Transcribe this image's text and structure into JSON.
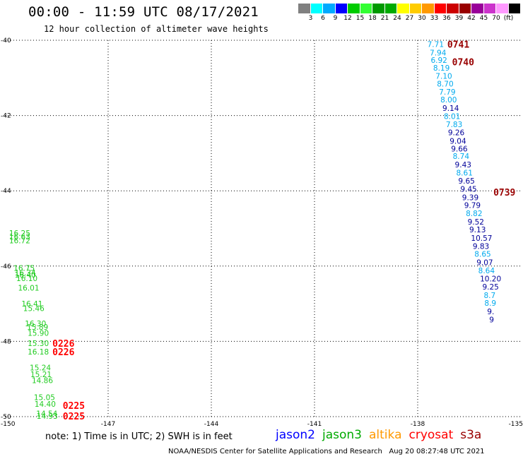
{
  "header": {
    "title": "00:00 - 11:59 UTC 08/17/2021",
    "subtitle": "12 hour collection of altimeter wave heights"
  },
  "colorbar": {
    "colors": [
      "#808080",
      "#00ffff",
      "#00aaff",
      "#0000ff",
      "#00cc00",
      "#33ff33",
      "#009900",
      "#00aa00",
      "#ffff00",
      "#ffcc00",
      "#ff9900",
      "#ff0000",
      "#cc0000",
      "#990000",
      "#990099",
      "#cc33cc",
      "#ff99ff",
      "#000000"
    ],
    "labels": [
      "3",
      "6",
      "9",
      "12",
      "15",
      "18",
      "21",
      "24",
      "27",
      "30",
      "33",
      "36",
      "39",
      "42",
      "45",
      "70",
      "(ft)"
    ]
  },
  "colors": {
    "jason2": "#0000ff",
    "jason3": "#00aa00",
    "altika": "#ff9900",
    "cryosat": "#ff0000",
    "s3a": "#990000",
    "cyan_vals": "#00aaee",
    "navy_vals": "#000099",
    "green_vals": "#22cc22"
  },
  "chart_data": {
    "type": "scatter",
    "title": "00:00 - 11:59 UTC 08/17/2021",
    "subtitle": "12 hour collection of altimeter wave heights",
    "x_ticks": [
      "-150",
      "-147",
      "-144",
      "-141",
      "-138",
      "-135"
    ],
    "y_ticks": [
      "-40",
      "-42",
      "-44",
      "-46",
      "-48",
      "-50"
    ],
    "xlim": [
      -150,
      -135
    ],
    "ylim": [
      -50,
      -40
    ],
    "grid": true,
    "units": "ft",
    "time_labels": [
      {
        "text": "0741",
        "lon": -137.14,
        "lat": -40.1,
        "color": "s3a"
      },
      {
        "text": "0740",
        "lon": -137.0,
        "lat": -40.57,
        "color": "s3a"
      },
      {
        "text": "0739",
        "lon": -135.8,
        "lat": -44.03,
        "color": "s3a"
      },
      {
        "text": "0226",
        "lon": -148.62,
        "lat": -48.05,
        "color": "cryosat"
      },
      {
        "text": "0226",
        "lon": -148.62,
        "lat": -48.27,
        "color": "cryosat"
      },
      {
        "text": "0225",
        "lon": -148.32,
        "lat": -49.7,
        "color": "cryosat"
      },
      {
        "text": "0225",
        "lon": -148.32,
        "lat": -49.98,
        "color": "cryosat"
      }
    ],
    "series": [
      {
        "name": "s3a",
        "points": [
          {
            "v": "7.71",
            "lon": -137.72,
            "lat": -40.1,
            "c": "cyan_vals"
          },
          {
            "v": "7.94",
            "lon": -137.65,
            "lat": -40.33,
            "c": "cyan_vals"
          },
          {
            "v": "6.92",
            "lon": -137.62,
            "lat": -40.53,
            "c": "cyan_vals"
          },
          {
            "v": "8.19",
            "lon": -137.55,
            "lat": -40.73,
            "c": "cyan_vals"
          },
          {
            "v": "7.10",
            "lon": -137.48,
            "lat": -40.95,
            "c": "cyan_vals"
          },
          {
            "v": "8.70",
            "lon": -137.44,
            "lat": -41.15,
            "c": "cyan_vals"
          },
          {
            "v": "7.79",
            "lon": -137.38,
            "lat": -41.37,
            "c": "cyan_vals"
          },
          {
            "v": "8.00",
            "lon": -137.34,
            "lat": -41.58,
            "c": "cyan_vals"
          },
          {
            "v": "9.14",
            "lon": -137.28,
            "lat": -41.8,
            "c": "navy_vals"
          },
          {
            "v": "8.01",
            "lon": -137.24,
            "lat": -42.02,
            "c": "cyan_vals"
          },
          {
            "v": "7.83",
            "lon": -137.18,
            "lat": -42.23,
            "c": "cyan_vals"
          },
          {
            "v": "9.26",
            "lon": -137.12,
            "lat": -42.45,
            "c": "navy_vals"
          },
          {
            "v": "9.04",
            "lon": -137.07,
            "lat": -42.67,
            "c": "navy_vals"
          },
          {
            "v": "9.66",
            "lon": -137.03,
            "lat": -42.88,
            "c": "navy_vals"
          },
          {
            "v": "8.74",
            "lon": -136.98,
            "lat": -43.08,
            "c": "cyan_vals"
          },
          {
            "v": "9.43",
            "lon": -136.92,
            "lat": -43.3,
            "c": "navy_vals"
          },
          {
            "v": "8.61",
            "lon": -136.88,
            "lat": -43.52,
            "c": "cyan_vals"
          },
          {
            "v": "9.65",
            "lon": -136.82,
            "lat": -43.73,
            "c": "navy_vals"
          },
          {
            "v": "9.45",
            "lon": -136.76,
            "lat": -43.95,
            "c": "navy_vals"
          },
          {
            "v": "9.39",
            "lon": -136.71,
            "lat": -44.17,
            "c": "navy_vals"
          },
          {
            "v": "9.79",
            "lon": -136.65,
            "lat": -44.38,
            "c": "navy_vals"
          },
          {
            "v": "8.82",
            "lon": -136.6,
            "lat": -44.6,
            "c": "cyan_vals"
          },
          {
            "v": "9.52",
            "lon": -136.55,
            "lat": -44.82,
            "c": "navy_vals"
          },
          {
            "v": "9.13",
            "lon": -136.5,
            "lat": -45.03,
            "c": "navy_vals"
          },
          {
            "v": "10.57",
            "lon": -136.45,
            "lat": -45.25,
            "c": "navy_vals"
          },
          {
            "v": "9.83",
            "lon": -136.4,
            "lat": -45.47,
            "c": "navy_vals"
          },
          {
            "v": "8.65",
            "lon": -136.35,
            "lat": -45.68,
            "c": "cyan_vals"
          },
          {
            "v": "9.07",
            "lon": -136.29,
            "lat": -45.9,
            "c": "navy_vals"
          },
          {
            "v": "8.64",
            "lon": -136.24,
            "lat": -46.12,
            "c": "cyan_vals"
          },
          {
            "v": "10.20",
            "lon": -136.19,
            "lat": -46.33,
            "c": "navy_vals"
          },
          {
            "v": "9.25",
            "lon": -136.12,
            "lat": -46.55,
            "c": "navy_vals"
          },
          {
            "v": "8.7",
            "lon": -136.08,
            "lat": -46.77,
            "c": "cyan_vals"
          },
          {
            "v": "8.9",
            "lon": -136.06,
            "lat": -46.98,
            "c": "cyan_vals"
          },
          {
            "v": "9.",
            "lon": -135.98,
            "lat": -47.2,
            "c": "navy_vals"
          },
          {
            "v": "9",
            "lon": -135.92,
            "lat": -47.42,
            "c": "navy_vals"
          }
        ]
      },
      {
        "name": "jason3",
        "points": [
          {
            "v": "16.25",
            "lon": -149.88,
            "lat": -45.12,
            "c": "green_vals"
          },
          {
            "v": "16.63",
            "lon": -149.88,
            "lat": -45.22,
            "c": "green_vals"
          },
          {
            "v": "16.72",
            "lon": -149.88,
            "lat": -45.32,
            "c": "green_vals"
          },
          {
            "v": "16.75",
            "lon": -149.75,
            "lat": -46.05,
            "c": "green_vals"
          },
          {
            "v": "16.34",
            "lon": -149.72,
            "lat": -46.17,
            "c": "green_vals"
          },
          {
            "v": "16.40",
            "lon": -149.72,
            "lat": -46.23,
            "c": "green_vals"
          },
          {
            "v": "16.10",
            "lon": -149.67,
            "lat": -46.32,
            "c": "green_vals"
          },
          {
            "v": "16.01",
            "lon": -149.62,
            "lat": -46.58,
            "c": "green_vals"
          },
          {
            "v": "16.41",
            "lon": -149.52,
            "lat": -47.0,
            "c": "green_vals"
          },
          {
            "v": "15.46",
            "lon": -149.47,
            "lat": -47.12,
            "c": "green_vals"
          },
          {
            "v": "16.30",
            "lon": -149.42,
            "lat": -47.52,
            "c": "green_vals"
          },
          {
            "v": "15.89",
            "lon": -149.36,
            "lat": -47.62,
            "c": "green_vals"
          },
          {
            "v": "15.90",
            "lon": -149.34,
            "lat": -47.78,
            "c": "green_vals"
          },
          {
            "v": "15.30",
            "lon": -149.34,
            "lat": -48.05,
            "c": "green_vals"
          },
          {
            "v": "16.18",
            "lon": -149.34,
            "lat": -48.27,
            "c": "green_vals"
          },
          {
            "v": "15.24",
            "lon": -149.28,
            "lat": -48.7,
            "c": "green_vals"
          },
          {
            "v": "15.21",
            "lon": -149.26,
            "lat": -48.87,
            "c": "green_vals"
          },
          {
            "v": "14.86",
            "lon": -149.22,
            "lat": -49.03,
            "c": "green_vals"
          },
          {
            "v": "15.05",
            "lon": -149.16,
            "lat": -49.48,
            "c": "green_vals"
          },
          {
            "v": "14.40",
            "lon": -149.14,
            "lat": -49.66,
            "c": "green_vals"
          },
          {
            "v": "14.54",
            "lon": -149.09,
            "lat": -49.92,
            "c": "green_vals"
          },
          {
            "v": "14.93",
            "lon": -149.08,
            "lat": -49.98,
            "c": "green_vals"
          }
        ]
      }
    ]
  },
  "note": "note: 1) Time is in UTC; 2) SWH is in feet",
  "legend": {
    "jason2": "jason2",
    "jason3": "jason3",
    "altika": "altika",
    "cryosat": "cryosat",
    "s3a": "s3a"
  },
  "footer": "NOAA/NESDIS Center for Satellite Applications and Research   Aug 20 08:27:48 UTC 2021"
}
